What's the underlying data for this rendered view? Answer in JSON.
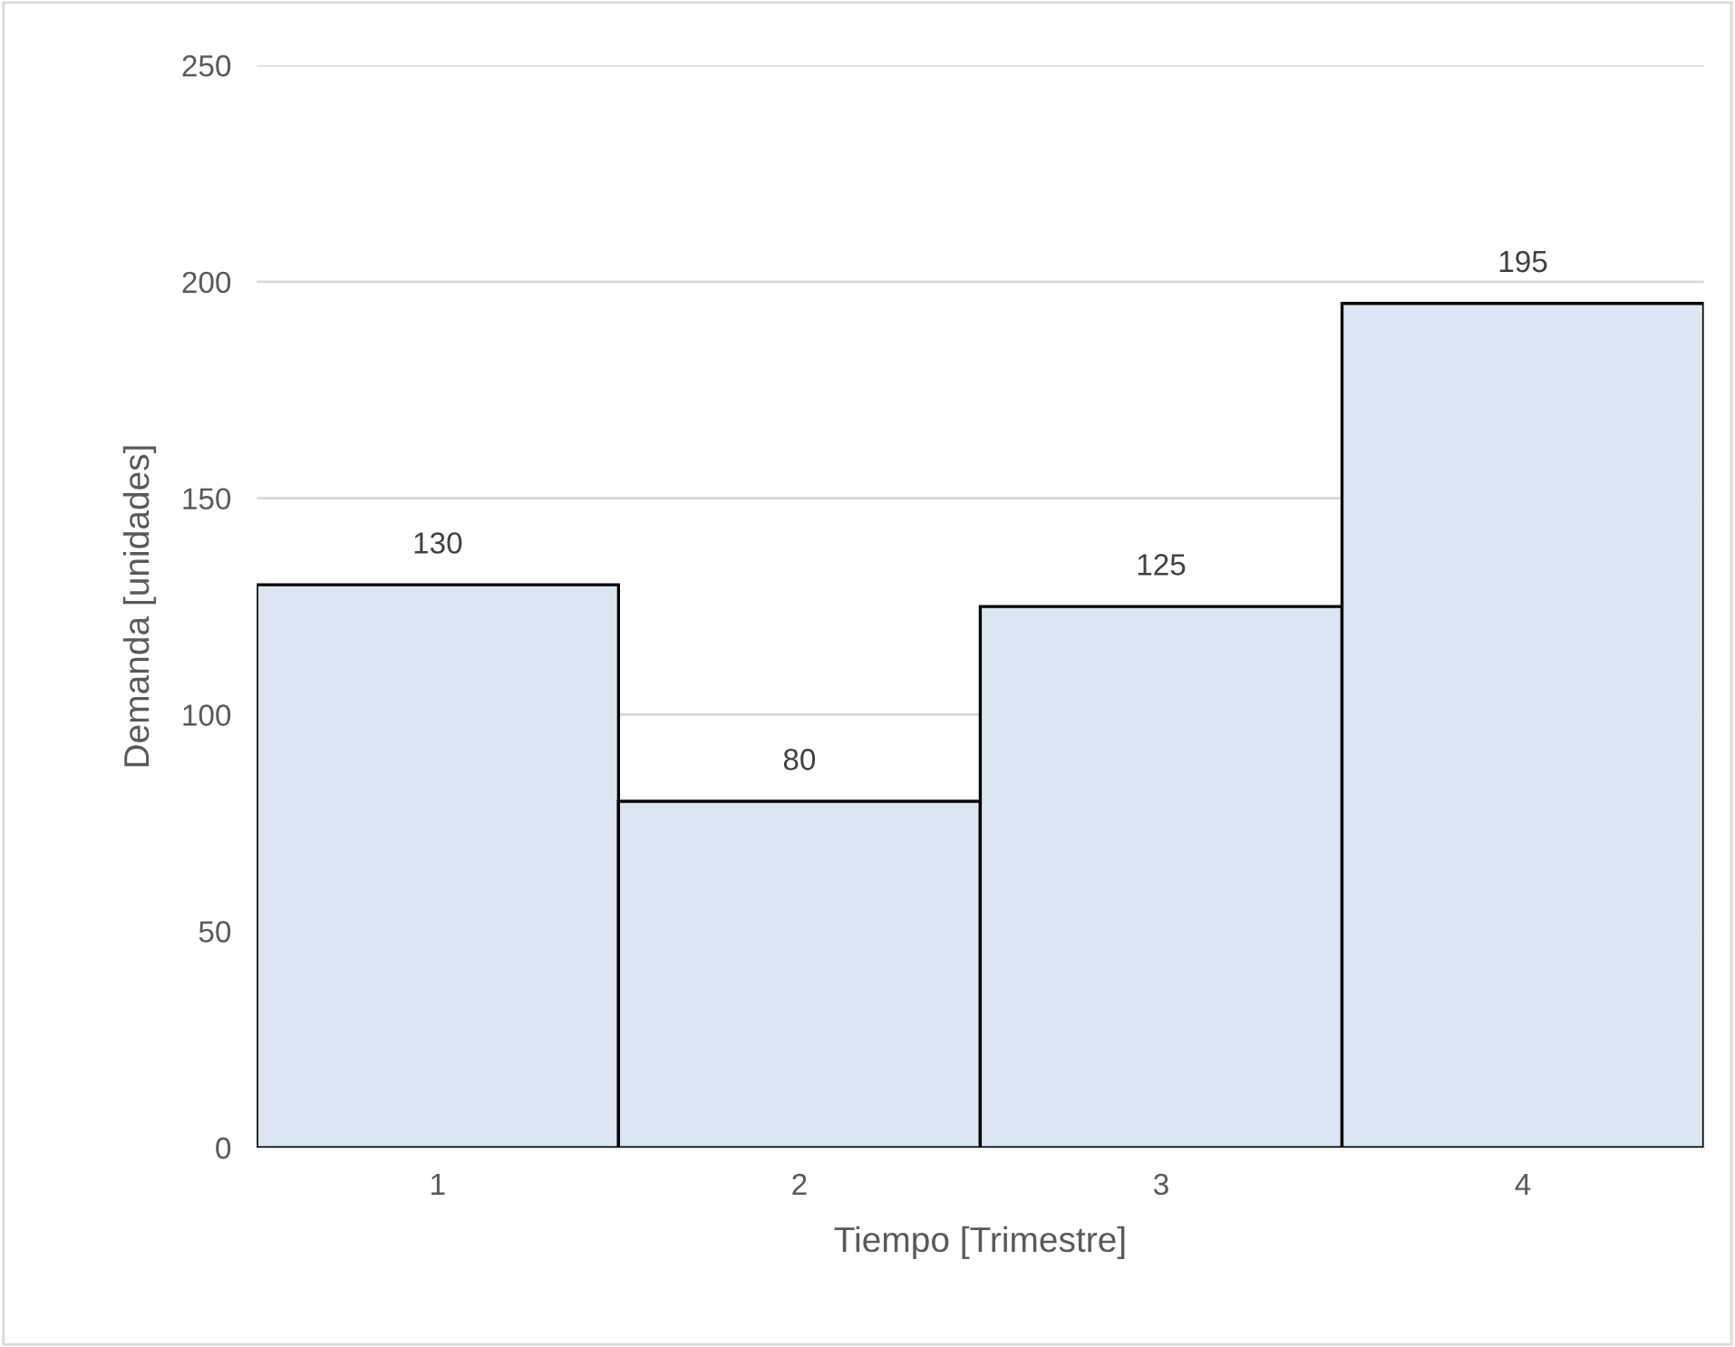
{
  "chart_data": {
    "type": "bar",
    "xlabel": "Tiempo [Trimestre]",
    "ylabel": "Demanda [unidades]",
    "categories": [
      "1",
      "2",
      "3",
      "4"
    ],
    "values": [
      130,
      80,
      125,
      195
    ],
    "color": "#dce6f2",
    "ylim": [
      0,
      250
    ],
    "yticks": [
      0,
      50,
      100,
      150,
      200,
      250
    ],
    "grid": "y",
    "data_labels": true
  }
}
